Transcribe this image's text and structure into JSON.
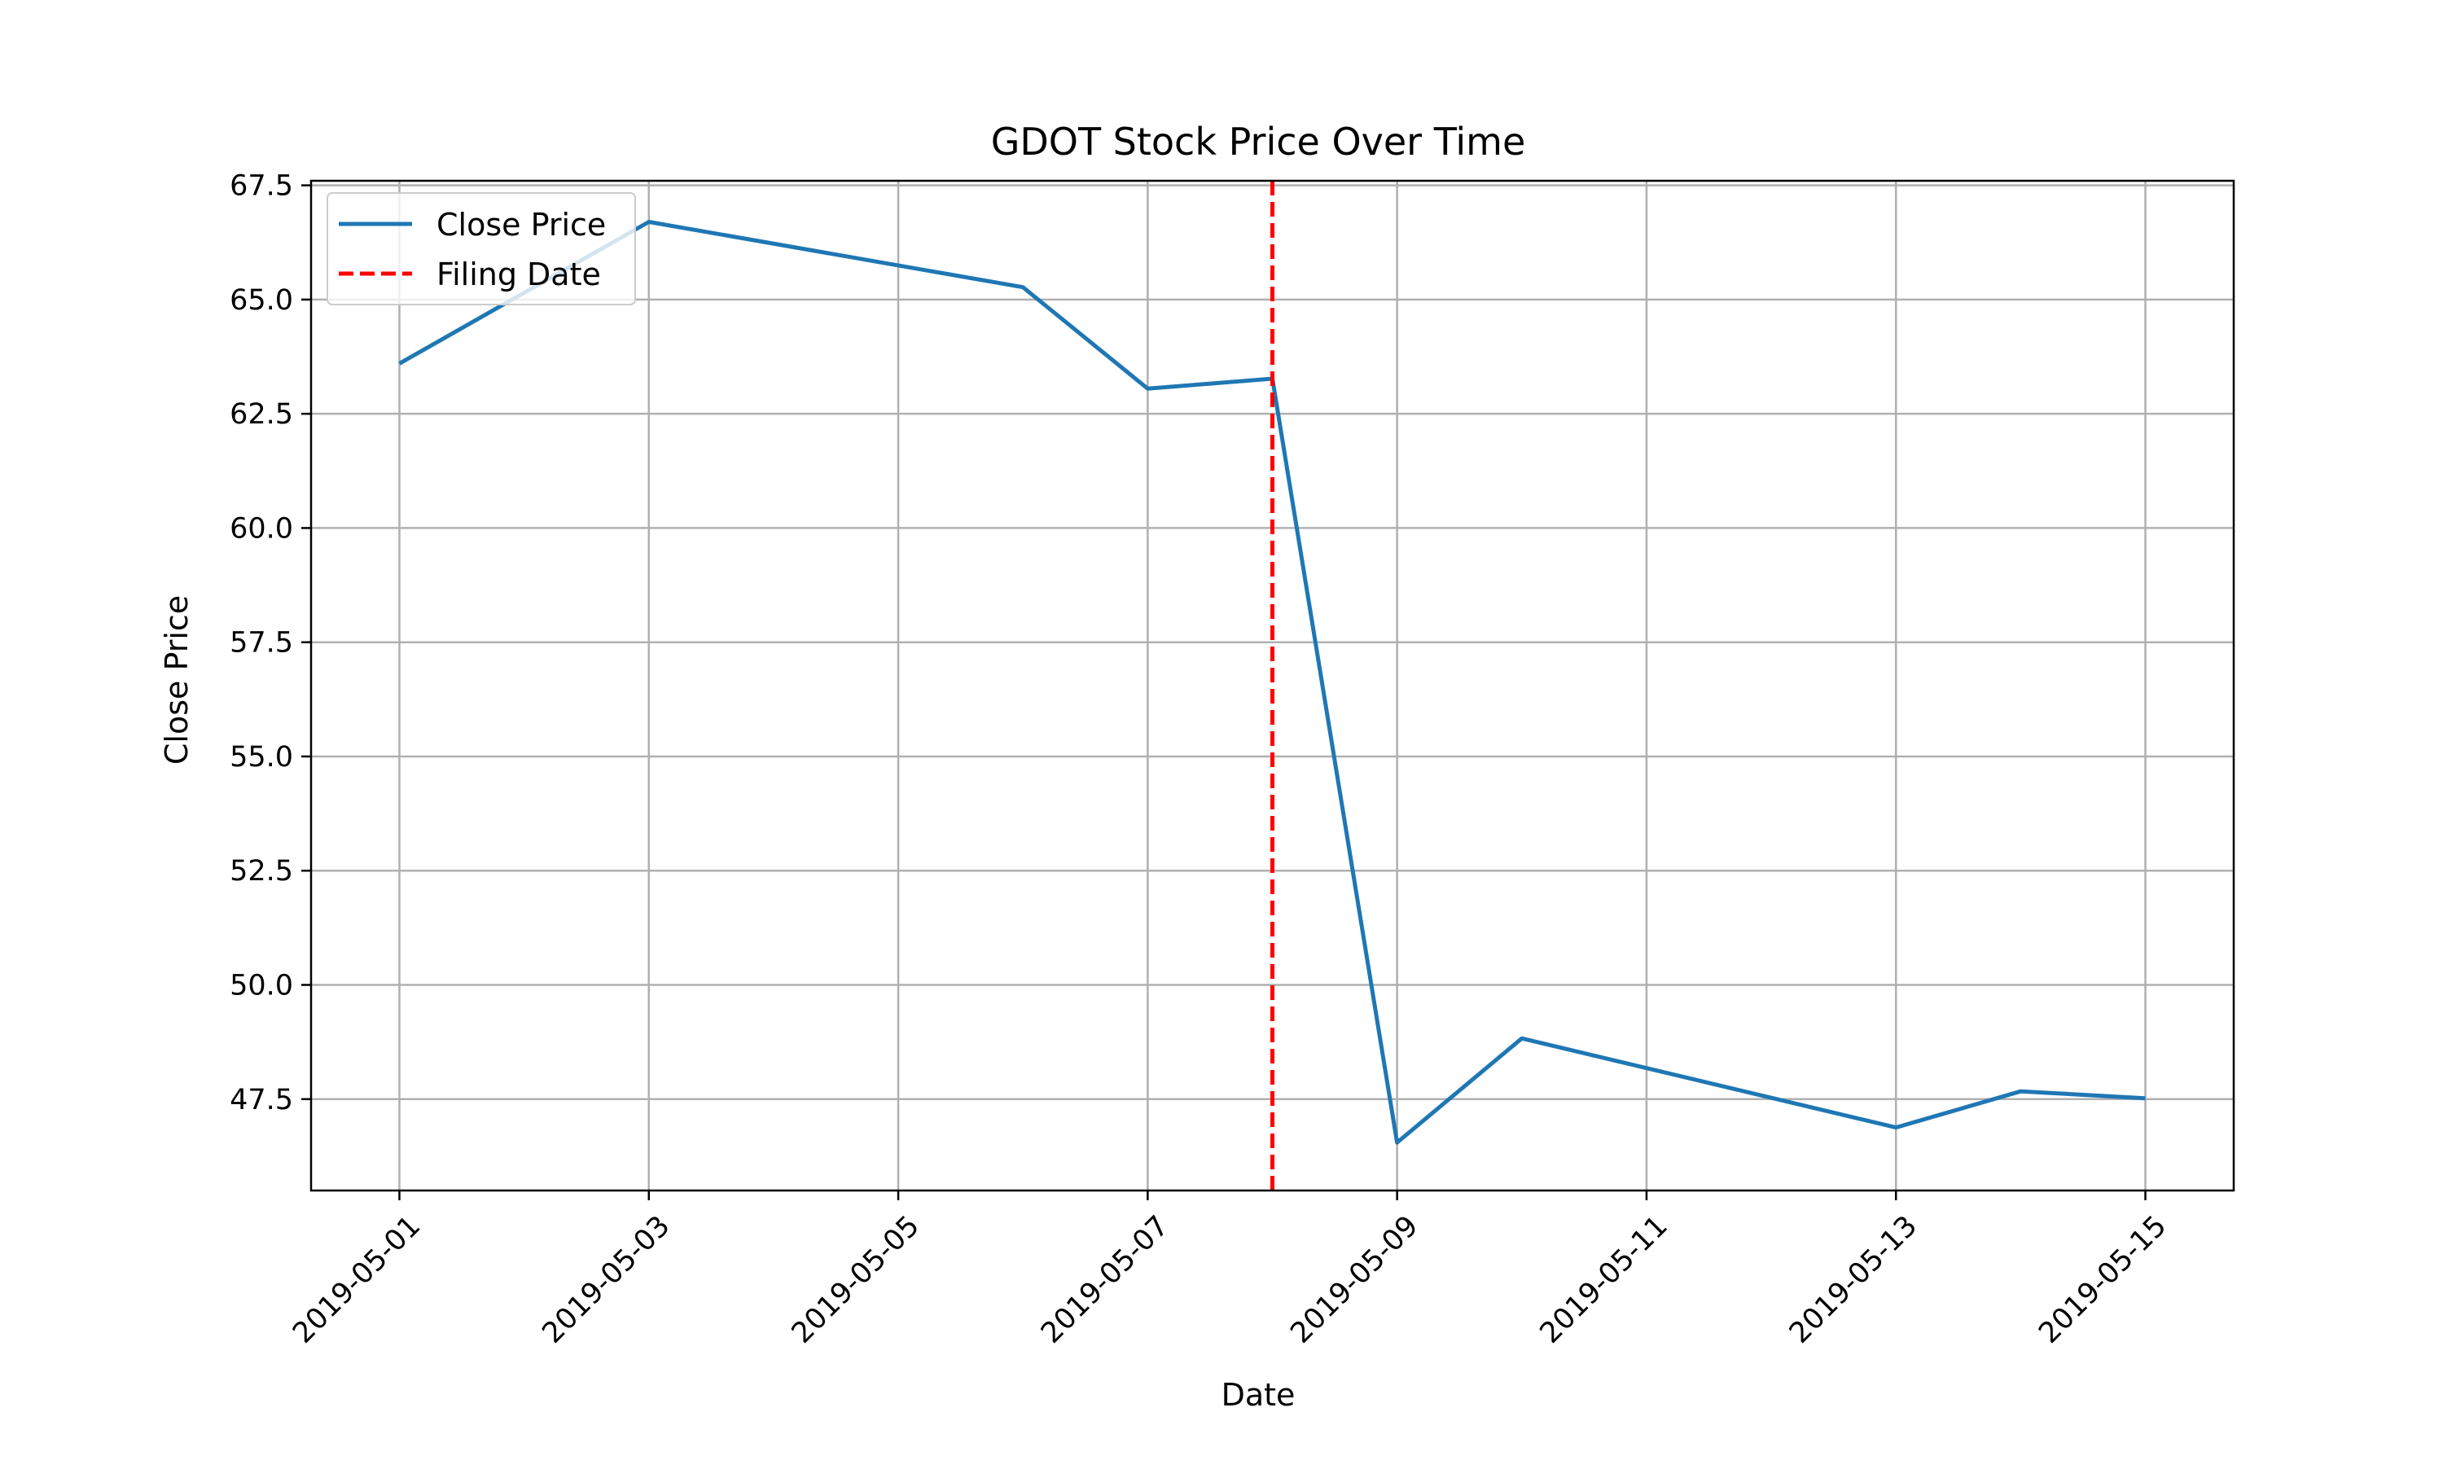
{
  "chart_data": {
    "type": "line",
    "title": "GDOT Stock Price Over Time",
    "xlabel": "Date",
    "ylabel": "Close Price",
    "x_axis_type": "date",
    "xlim": [
      "2019-04-30T07:00",
      "2019-05-15T17:00"
    ],
    "ylim": [
      45.5,
      67.6
    ],
    "x_ticks": [
      "2019-05-01",
      "2019-05-03",
      "2019-05-05",
      "2019-05-07",
      "2019-05-09",
      "2019-05-11",
      "2019-05-13",
      "2019-05-15"
    ],
    "y_ticks": [
      "47.5",
      "50.0",
      "52.5",
      "55.0",
      "57.5",
      "60.0",
      "62.5",
      "65.0",
      "67.5"
    ],
    "grid": true,
    "legend_position": "top-left",
    "series": [
      {
        "name": "Close Price",
        "color": "#1f77b4",
        "style": "solid",
        "points": [
          {
            "x": "2019-05-01",
            "y": 63.6
          },
          {
            "x": "2019-05-03",
            "y": 66.7
          },
          {
            "x": "2019-05-06",
            "y": 65.27
          },
          {
            "x": "2019-05-07",
            "y": 63.05
          },
          {
            "x": "2019-05-08",
            "y": 63.27
          },
          {
            "x": "2019-05-09",
            "y": 46.55
          },
          {
            "x": "2019-05-10",
            "y": 48.83
          },
          {
            "x": "2019-05-13",
            "y": 46.88
          },
          {
            "x": "2019-05-14",
            "y": 47.67
          },
          {
            "x": "2019-05-15",
            "y": 47.52
          }
        ]
      }
    ],
    "vlines": [
      {
        "name": "Filing Date",
        "x": "2019-05-08",
        "color": "#ff0000",
        "style": "dashed"
      }
    ]
  }
}
